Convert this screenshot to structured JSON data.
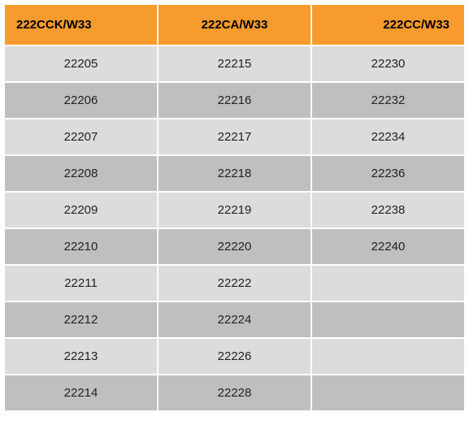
{
  "table": {
    "type": "table",
    "header_bg": "#f79b2e",
    "header_text_color": "#000000",
    "row_bg_light": "#dcdcdc",
    "row_bg_dark": "#bfbfbf",
    "cell_text_color": "#222222",
    "header_fontsize": 15,
    "cell_fontsize": 15,
    "columns": [
      "222CCK/W33",
      "222CA/W33",
      "222CC/W33"
    ],
    "rows": [
      [
        "22205",
        "22215",
        "22230"
      ],
      [
        "22206",
        "22216",
        "22232"
      ],
      [
        "22207",
        "22217",
        "22234"
      ],
      [
        "22208",
        "22218",
        "22236"
      ],
      [
        "22209",
        "22219",
        "22238"
      ],
      [
        "22210",
        "22220",
        "22240"
      ],
      [
        "22211",
        "22222",
        ""
      ],
      [
        "22212",
        "22224",
        ""
      ],
      [
        "22213",
        "22226",
        ""
      ],
      [
        "22214",
        "22228",
        ""
      ]
    ]
  }
}
